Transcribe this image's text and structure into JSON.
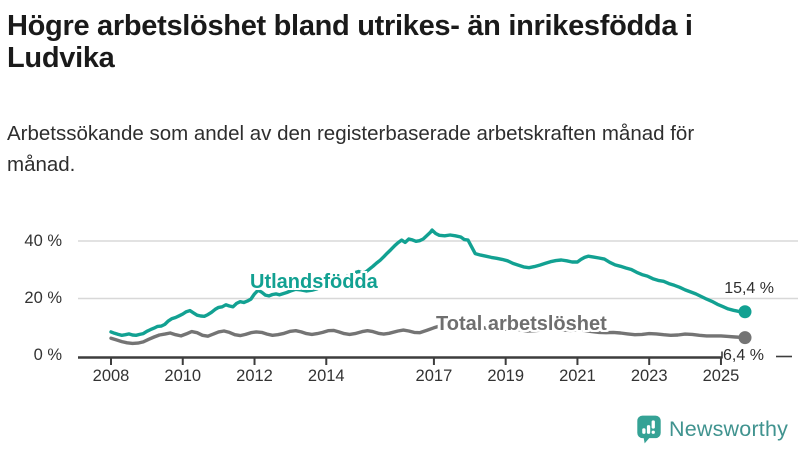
{
  "header": {
    "title": "Högre arbetslöshet bland utrikes- än inrikesfödda i Ludvika",
    "subtitle": "Arbetssökande som andel av den registerbaserade arbetskraften månad för månad."
  },
  "logo": {
    "text": "Newsworthy"
  },
  "colors": {
    "accent_teal": "#12a192",
    "line_gray": "#747474",
    "axis": "#3d3d3d",
    "gridline": "#d8d8d8",
    "logo_teal": "#35a295",
    "logo_text": "#40938f"
  },
  "chart_data": {
    "type": "line",
    "title": "Högre arbetslöshet bland utrikes- än inrikesfödda i Ludvika",
    "subtitle": "Arbetssökande som andel av den registerbaserade arbetskraften månad för månad.",
    "unit": "%",
    "decimal_separator": ",",
    "grid": "horizontal",
    "legend_position": "inline-labels",
    "x_range": [
      2008,
      2025.67
    ],
    "ylim": [
      0,
      48
    ],
    "yticks": [
      {
        "label": "0 %",
        "value": 0
      },
      {
        "label": "20 %",
        "value": 20
      },
      {
        "label": "40 %",
        "value": 40
      }
    ],
    "xticks": [
      {
        "label": "2008",
        "year": 2008
      },
      {
        "label": "2010",
        "year": 2010
      },
      {
        "label": "2012",
        "year": 2012
      },
      {
        "label": "2014",
        "year": 2014
      },
      {
        "label": "2017",
        "year": 2017
      },
      {
        "label": "2019",
        "year": 2019
      },
      {
        "label": "2021",
        "year": 2021
      },
      {
        "label": "2023",
        "year": 2023
      },
      {
        "label": "2025",
        "year": 2025
      }
    ],
    "series": [
      {
        "name": "Utlandsfödda",
        "slug": "utlandsfodda",
        "color": "#12a192",
        "end_label": "15,4 %",
        "end_value": 15.4,
        "points": [
          [
            2008.0,
            8.4
          ],
          [
            2008.1,
            7.9
          ],
          [
            2008.2,
            7.5
          ],
          [
            2008.3,
            7.2
          ],
          [
            2008.4,
            7.4
          ],
          [
            2008.5,
            7.7
          ],
          [
            2008.6,
            7.3
          ],
          [
            2008.7,
            7.2
          ],
          [
            2008.8,
            7.5
          ],
          [
            2008.9,
            7.8
          ],
          [
            2009.0,
            8.6
          ],
          [
            2009.1,
            9.2
          ],
          [
            2009.2,
            9.7
          ],
          [
            2009.3,
            10.3
          ],
          [
            2009.4,
            10.4
          ],
          [
            2009.5,
            11.0
          ],
          [
            2009.6,
            12.2
          ],
          [
            2009.7,
            13.0
          ],
          [
            2009.8,
            13.4
          ],
          [
            2009.9,
            14.0
          ],
          [
            2010.0,
            14.6
          ],
          [
            2010.1,
            15.4
          ],
          [
            2010.2,
            15.8
          ],
          [
            2010.3,
            15.0
          ],
          [
            2010.4,
            14.2
          ],
          [
            2010.5,
            13.9
          ],
          [
            2010.6,
            13.8
          ],
          [
            2010.7,
            14.4
          ],
          [
            2010.8,
            15.2
          ],
          [
            2010.9,
            16.2
          ],
          [
            2011.0,
            16.9
          ],
          [
            2011.1,
            17.1
          ],
          [
            2011.2,
            17.8
          ],
          [
            2011.3,
            17.4
          ],
          [
            2011.4,
            17.1
          ],
          [
            2011.5,
            18.3
          ],
          [
            2011.6,
            18.9
          ],
          [
            2011.7,
            18.6
          ],
          [
            2011.8,
            19.1
          ],
          [
            2011.9,
            19.8
          ],
          [
            2012.0,
            21.6
          ],
          [
            2012.1,
            22.9
          ],
          [
            2012.2,
            22.2
          ],
          [
            2012.3,
            21.2
          ],
          [
            2012.4,
            20.9
          ],
          [
            2012.5,
            21.4
          ],
          [
            2012.6,
            21.6
          ],
          [
            2012.7,
            21.3
          ],
          [
            2012.8,
            21.7
          ],
          [
            2012.9,
            22.1
          ],
          [
            2013.0,
            22.6
          ],
          [
            2013.15,
            23.2
          ],
          [
            2013.3,
            23.0
          ],
          [
            2013.45,
            22.6
          ],
          [
            2013.6,
            22.9
          ],
          [
            2013.75,
            23.4
          ],
          [
            2013.9,
            24.2
          ],
          [
            2014.05,
            25.0
          ],
          [
            2014.2,
            25.8
          ],
          [
            2014.35,
            26.4
          ],
          [
            2014.5,
            27.2
          ],
          [
            2014.65,
            28.1
          ],
          [
            2014.8,
            29.0
          ],
          [
            2014.9,
            29.4
          ],
          [
            2015.0,
            28.9
          ],
          [
            2015.1,
            29.2
          ],
          [
            2015.2,
            30.2
          ],
          [
            2015.3,
            31.2
          ],
          [
            2015.4,
            32.3
          ],
          [
            2015.5,
            33.3
          ],
          [
            2015.6,
            34.5
          ],
          [
            2015.7,
            35.8
          ],
          [
            2015.8,
            37.0
          ],
          [
            2015.9,
            38.3
          ],
          [
            2016.0,
            39.4
          ],
          [
            2016.1,
            40.3
          ],
          [
            2016.2,
            39.5
          ],
          [
            2016.3,
            40.7
          ],
          [
            2016.4,
            40.4
          ],
          [
            2016.5,
            39.9
          ],
          [
            2016.6,
            40.1
          ],
          [
            2016.7,
            40.7
          ],
          [
            2016.8,
            41.8
          ],
          [
            2016.9,
            43.0
          ],
          [
            2016.95,
            43.8
          ],
          [
            2017.05,
            42.6
          ],
          [
            2017.15,
            42.0
          ],
          [
            2017.3,
            41.8
          ],
          [
            2017.45,
            42.1
          ],
          [
            2017.6,
            41.8
          ],
          [
            2017.75,
            41.4
          ],
          [
            2017.85,
            40.5
          ],
          [
            2017.95,
            40.3
          ],
          [
            2018.05,
            38.0
          ],
          [
            2018.15,
            35.6
          ],
          [
            2018.3,
            35.1
          ],
          [
            2018.45,
            34.7
          ],
          [
            2018.6,
            34.3
          ],
          [
            2018.75,
            34.0
          ],
          [
            2018.9,
            33.6
          ],
          [
            2019.05,
            33.1
          ],
          [
            2019.2,
            32.2
          ],
          [
            2019.35,
            31.6
          ],
          [
            2019.5,
            31.0
          ],
          [
            2019.65,
            30.7
          ],
          [
            2019.8,
            31.1
          ],
          [
            2019.95,
            31.6
          ],
          [
            2020.1,
            32.2
          ],
          [
            2020.25,
            32.8
          ],
          [
            2020.4,
            33.2
          ],
          [
            2020.55,
            33.4
          ],
          [
            2020.7,
            33.1
          ],
          [
            2020.85,
            32.7
          ],
          [
            2021.0,
            32.7
          ],
          [
            2021.1,
            33.6
          ],
          [
            2021.2,
            34.3
          ],
          [
            2021.3,
            34.7
          ],
          [
            2021.45,
            34.4
          ],
          [
            2021.6,
            34.1
          ],
          [
            2021.75,
            33.7
          ],
          [
            2021.9,
            32.6
          ],
          [
            2022.05,
            31.7
          ],
          [
            2022.2,
            31.2
          ],
          [
            2022.35,
            30.6
          ],
          [
            2022.5,
            30.1
          ],
          [
            2022.65,
            29.1
          ],
          [
            2022.8,
            28.3
          ],
          [
            2022.95,
            27.8
          ],
          [
            2023.1,
            26.9
          ],
          [
            2023.25,
            26.3
          ],
          [
            2023.4,
            26.0
          ],
          [
            2023.55,
            25.2
          ],
          [
            2023.7,
            24.6
          ],
          [
            2023.85,
            23.9
          ],
          [
            2024.0,
            23.0
          ],
          [
            2024.15,
            22.3
          ],
          [
            2024.3,
            21.6
          ],
          [
            2024.45,
            20.7
          ],
          [
            2024.6,
            19.8
          ],
          [
            2024.75,
            19.0
          ],
          [
            2024.9,
            18.0
          ],
          [
            2025.05,
            17.2
          ],
          [
            2025.2,
            16.4
          ],
          [
            2025.35,
            15.9
          ],
          [
            2025.5,
            15.5
          ],
          [
            2025.67,
            15.4
          ]
        ]
      },
      {
        "name": "Total arbetslöshet",
        "slug": "total-arbetsloshet",
        "color": "#747474",
        "end_label": "6,4 %",
        "end_value": 6.4,
        "points": [
          [
            2008.0,
            6.2
          ],
          [
            2008.15,
            5.6
          ],
          [
            2008.3,
            5.0
          ],
          [
            2008.45,
            4.6
          ],
          [
            2008.6,
            4.4
          ],
          [
            2008.75,
            4.5
          ],
          [
            2008.9,
            4.9
          ],
          [
            2009.05,
            5.8
          ],
          [
            2009.2,
            6.6
          ],
          [
            2009.35,
            7.3
          ],
          [
            2009.5,
            7.6
          ],
          [
            2009.65,
            8.0
          ],
          [
            2009.8,
            7.4
          ],
          [
            2009.95,
            7.0
          ],
          [
            2010.1,
            7.7
          ],
          [
            2010.25,
            8.5
          ],
          [
            2010.4,
            8.1
          ],
          [
            2010.55,
            7.2
          ],
          [
            2010.7,
            6.9
          ],
          [
            2010.85,
            7.6
          ],
          [
            2011.0,
            8.4
          ],
          [
            2011.15,
            8.7
          ],
          [
            2011.3,
            8.2
          ],
          [
            2011.45,
            7.4
          ],
          [
            2011.6,
            7.1
          ],
          [
            2011.75,
            7.5
          ],
          [
            2011.9,
            8.1
          ],
          [
            2012.05,
            8.4
          ],
          [
            2012.2,
            8.2
          ],
          [
            2012.35,
            7.6
          ],
          [
            2012.5,
            7.2
          ],
          [
            2012.65,
            7.4
          ],
          [
            2012.8,
            7.8
          ],
          [
            2013.0,
            8.6
          ],
          [
            2013.15,
            8.8
          ],
          [
            2013.3,
            8.4
          ],
          [
            2013.45,
            7.8
          ],
          [
            2013.6,
            7.5
          ],
          [
            2013.75,
            7.8
          ],
          [
            2013.9,
            8.2
          ],
          [
            2014.05,
            8.8
          ],
          [
            2014.2,
            8.9
          ],
          [
            2014.35,
            8.4
          ],
          [
            2014.5,
            7.8
          ],
          [
            2014.65,
            7.5
          ],
          [
            2014.8,
            7.8
          ],
          [
            2015.0,
            8.5
          ],
          [
            2015.15,
            8.8
          ],
          [
            2015.3,
            8.5
          ],
          [
            2015.45,
            7.9
          ],
          [
            2015.6,
            7.6
          ],
          [
            2015.75,
            7.9
          ],
          [
            2016.0,
            8.7
          ],
          [
            2016.15,
            9.0
          ],
          [
            2016.3,
            8.7
          ],
          [
            2016.45,
            8.2
          ],
          [
            2016.6,
            8.1
          ],
          [
            2016.8,
            8.9
          ],
          [
            2017.0,
            9.8
          ],
          [
            2017.15,
            10.4
          ],
          [
            2017.3,
            10.6
          ],
          [
            2017.45,
            10.3
          ],
          [
            2017.6,
            9.8
          ],
          [
            2017.8,
            9.6
          ],
          [
            2018.0,
            10.0
          ],
          [
            2018.2,
            10.2
          ],
          [
            2018.4,
            9.8
          ],
          [
            2018.6,
            9.3
          ],
          [
            2018.8,
            9.2
          ],
          [
            2019.0,
            9.4
          ],
          [
            2019.2,
            9.5
          ],
          [
            2019.4,
            9.1
          ],
          [
            2019.6,
            8.7
          ],
          [
            2019.8,
            8.8
          ],
          [
            2020.0,
            9.0
          ],
          [
            2020.2,
            9.4
          ],
          [
            2020.4,
            9.3
          ],
          [
            2020.6,
            9.0
          ],
          [
            2020.8,
            8.9
          ],
          [
            2021.0,
            9.0
          ],
          [
            2021.2,
            8.9
          ],
          [
            2021.4,
            8.5
          ],
          [
            2021.6,
            8.2
          ],
          [
            2021.8,
            8.1
          ],
          [
            2022.0,
            8.2
          ],
          [
            2022.2,
            8.0
          ],
          [
            2022.4,
            7.7
          ],
          [
            2022.6,
            7.4
          ],
          [
            2022.8,
            7.5
          ],
          [
            2023.0,
            7.8
          ],
          [
            2023.2,
            7.7
          ],
          [
            2023.4,
            7.4
          ],
          [
            2023.6,
            7.2
          ],
          [
            2023.8,
            7.3
          ],
          [
            2024.0,
            7.6
          ],
          [
            2024.2,
            7.5
          ],
          [
            2024.4,
            7.2
          ],
          [
            2024.6,
            7.0
          ],
          [
            2024.8,
            7.0
          ],
          [
            2025.0,
            7.0
          ],
          [
            2025.2,
            6.8
          ],
          [
            2025.4,
            6.6
          ],
          [
            2025.67,
            6.4
          ]
        ]
      }
    ]
  }
}
